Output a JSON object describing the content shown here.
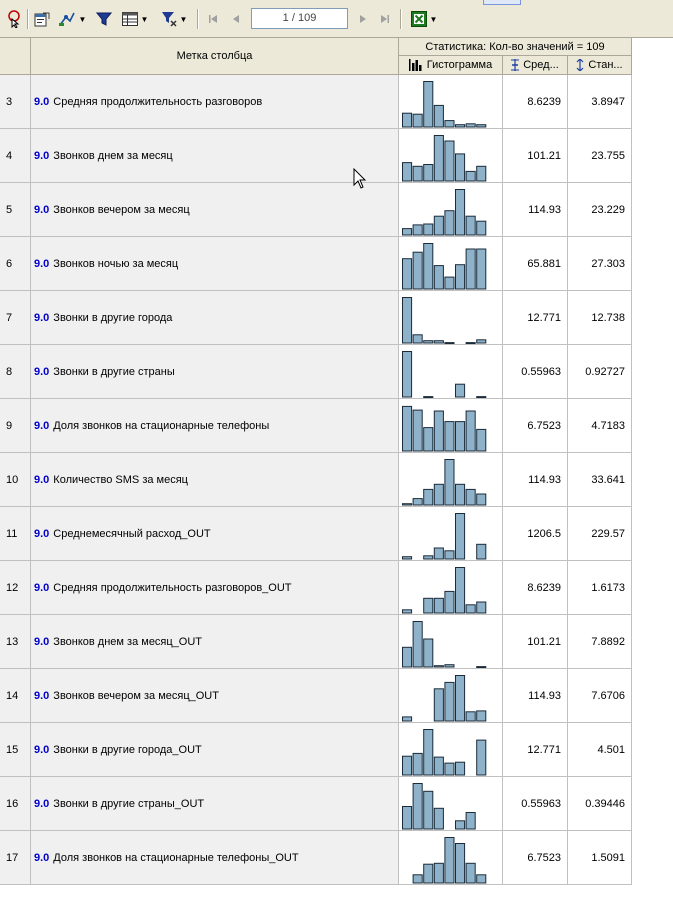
{
  "toolbar": {
    "buttons": [
      {
        "name": "cursor-help-icon"
      },
      {
        "name": "properties-icon"
      },
      {
        "name": "visualizer-icon"
      },
      {
        "name": "filter-icon"
      },
      {
        "name": "table-view-icon"
      },
      {
        "name": "sort-filter-icon"
      },
      {
        "name": "first-page-icon"
      },
      {
        "name": "prev-page-icon"
      },
      {
        "name": "next-page-icon"
      },
      {
        "name": "last-page-icon"
      },
      {
        "name": "excel-export-icon"
      }
    ],
    "page_indicator": "1 / 109"
  },
  "grid": {
    "header": {
      "label_col": "Метка столбца",
      "stats_group": "Статистика: Кол-во значений = 109",
      "hist_col": "Гистограмма",
      "mean_col": "Сред...",
      "std_col": "Стан..."
    },
    "rows": [
      {
        "num": "3",
        "role": "9.0",
        "label": "Средняя продолжительность разговоров",
        "mean": "8.6239",
        "std": "3.8947",
        "hist": [
          0.31,
          0.29,
          1.0,
          0.48,
          0.15,
          0.06,
          0.08,
          0.06
        ]
      },
      {
        "num": "4",
        "role": "9.0",
        "label": "Звонков днем за месяц",
        "mean": "101.21",
        "std": "23.755",
        "hist": [
          0.41,
          0.33,
          0.37,
          1.0,
          0.88,
          0.6,
          0.22,
          0.33
        ]
      },
      {
        "num": "5",
        "role": "9.0",
        "label": "Звонков вечером за месяц",
        "mean": "114.93",
        "std": "23.229",
        "hist": [
          0.15,
          0.23,
          0.25,
          0.42,
          0.54,
          1.0,
          0.42,
          0.31
        ]
      },
      {
        "num": "6",
        "role": "9.0",
        "label": "Звонков ночью за месяц",
        "mean": "65.881",
        "std": "27.303",
        "hist": [
          0.67,
          0.81,
          1.0,
          0.52,
          0.27,
          0.54,
          0.88,
          0.88
        ]
      },
      {
        "num": "7",
        "role": "9.0",
        "label": "Звонки в другие города",
        "mean": "12.771",
        "std": "12.738",
        "hist": [
          1.0,
          0.19,
          0.06,
          0.06,
          0.02,
          0.0,
          0.02,
          0.08
        ]
      },
      {
        "num": "8",
        "role": "9.0",
        "label": "Звонки в другие страны",
        "mean": "0.55963",
        "std": "0.92727",
        "hist": [
          1.0,
          0.0,
          0.02,
          0.0,
          0.0,
          0.29,
          0.0,
          0.02
        ]
      },
      {
        "num": "9",
        "role": "9.0",
        "label": "Доля звонков на стационарные телефоны",
        "mean": "6.7523",
        "std": "4.7183",
        "hist": [
          0.98,
          0.9,
          0.52,
          0.88,
          0.65,
          0.65,
          0.88,
          0.48
        ]
      },
      {
        "num": "10",
        "role": "9.0",
        "label": "Количество SMS за месяц",
        "mean": "114.93",
        "std": "33.641",
        "hist": [
          0.04,
          0.15,
          0.35,
          0.46,
          1.0,
          0.46,
          0.35,
          0.25
        ]
      },
      {
        "num": "11",
        "role": "9.0",
        "label": "Среднемесячный расход_OUT",
        "mean": "1206.5",
        "std": "229.57",
        "hist": [
          0.06,
          0.0,
          0.08,
          0.25,
          0.19,
          1.0,
          0.0,
          0.33
        ]
      },
      {
        "num": "12",
        "role": "9.0",
        "label": "Средняя продолжительность разговоров_OUT",
        "mean": "8.6239",
        "std": "1.6173",
        "hist": [
          0.08,
          0.0,
          0.33,
          0.33,
          0.48,
          1.0,
          0.19,
          0.25
        ]
      },
      {
        "num": "13",
        "role": "9.0",
        "label": "Звонков днем за месяц_OUT",
        "mean": "101.21",
        "std": "7.8892",
        "hist": [
          0.44,
          1.0,
          0.62,
          0.04,
          0.06,
          0.0,
          0.0,
          0.02
        ]
      },
      {
        "num": "14",
        "role": "9.0",
        "label": "Звонков вечером за месяц_OUT",
        "mean": "114.93",
        "std": "7.6706",
        "hist": [
          0.1,
          0.0,
          0.0,
          0.71,
          0.85,
          1.0,
          0.21,
          0.23
        ]
      },
      {
        "num": "15",
        "role": "9.0",
        "label": "Звонки в другие города_OUT",
        "mean": "12.771",
        "std": "4.501",
        "hist": [
          0.42,
          0.48,
          1.0,
          0.4,
          0.27,
          0.29,
          0.0,
          0.77
        ]
      },
      {
        "num": "16",
        "role": "9.0",
        "label": "Звонки в другие страны_OUT",
        "mean": "0.55963",
        "std": "0.39446",
        "hist": [
          0.5,
          1.0,
          0.83,
          0.46,
          0.0,
          0.19,
          0.37,
          0.0
        ]
      },
      {
        "num": "17",
        "role": "9.0",
        "label": "Доля звонков на стационарные телефоны_OUT",
        "mean": "6.7523",
        "std": "1.5091",
        "hist": [
          0.0,
          0.19,
          0.42,
          0.44,
          1.0,
          0.87,
          0.44,
          0.19
        ]
      }
    ]
  }
}
